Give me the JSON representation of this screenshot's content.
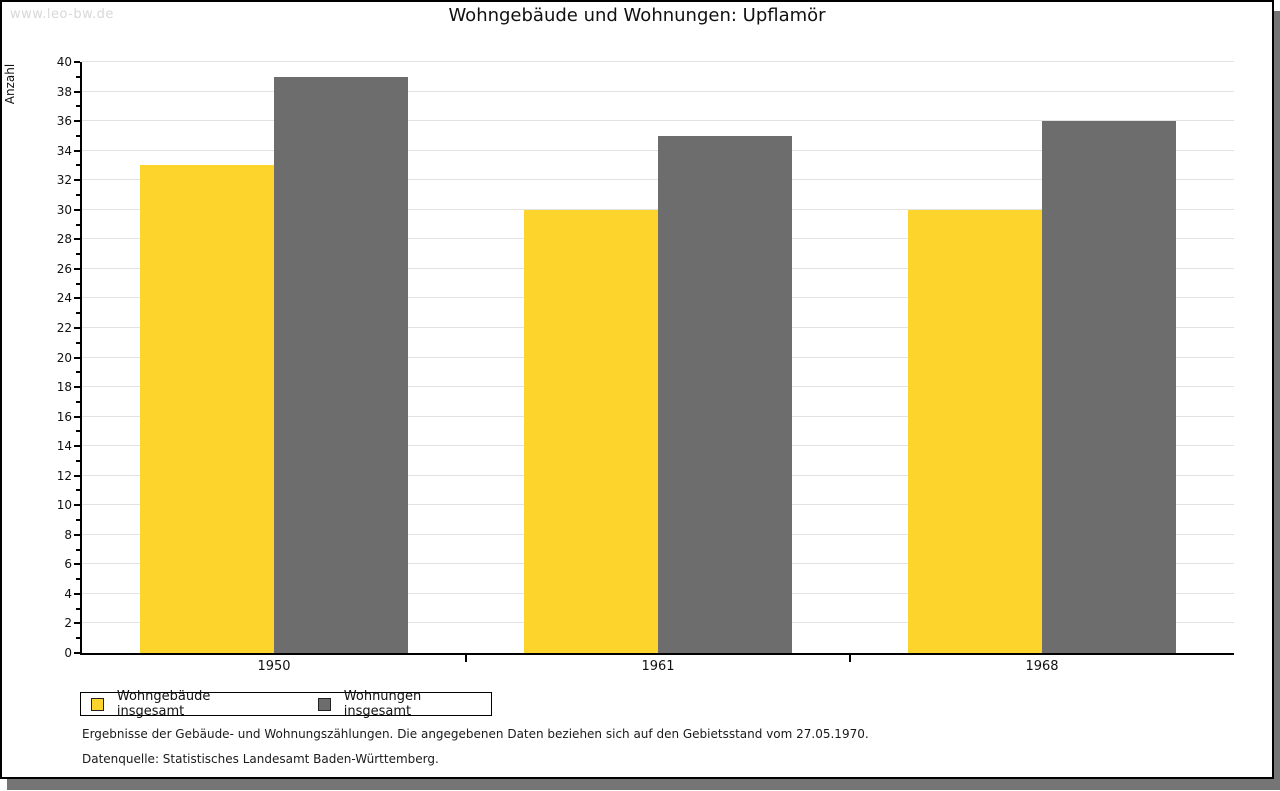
{
  "watermark": "www.leo-bw.de",
  "title": "Wohngebäude und Wohnungen: Upflamör",
  "chart_data": {
    "type": "bar",
    "title": "Wohngebäude und Wohnungen: Upflamör",
    "categories": [
      "1950",
      "1961",
      "1968"
    ],
    "series": [
      {
        "name": "Wohngebäude insgesamt",
        "color": "#fdd42c",
        "values": [
          33,
          30,
          30
        ]
      },
      {
        "name": "Wohnungen insgesamt",
        "color": "#6d6d6d",
        "values": [
          39,
          35,
          36
        ]
      }
    ],
    "xlabel": "",
    "ylabel": "Anzahl",
    "ylim": [
      0,
      40
    ],
    "ytick_step": 2,
    "grid": true,
    "legend_position": "bottom-left"
  },
  "footer": {
    "line1": "Ergebnisse der Gebäude- und Wohnungszählungen. Die angegebenen Daten beziehen sich auf den Gebietsstand vom 27.05.1970.",
    "line2": "Datenquelle: Statistisches Landesamt Baden-Württemberg."
  },
  "colors": {
    "bar_yellow": "#fdd42c",
    "bar_gray": "#6d6d6d",
    "gridline": "#e2e2e2",
    "watermark": "#d8d8d8",
    "axis": "#000000",
    "shadow": "#757575"
  }
}
